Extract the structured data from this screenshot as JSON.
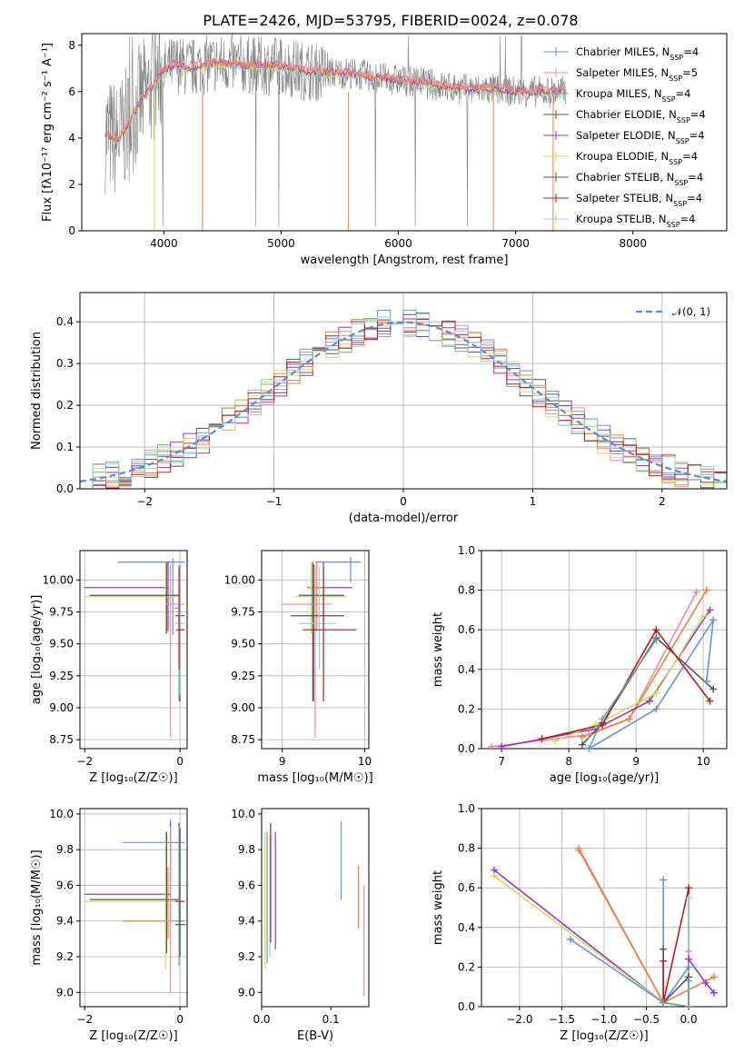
{
  "figure_title": "PLATE=2426, MJD=53795, FIBERID=0024, z=0.078",
  "colors": {
    "blue": "#6a8fdb",
    "pink": "#e88aa8",
    "teal": "#6aa6a0",
    "gray": "#555555",
    "purple": "#9a35c4",
    "yellow": "#c8e05a",
    "orange": "#f08030",
    "red": "#c01818",
    "cyan": "#88d4d8",
    "data_gray": "#808080",
    "normal_curve": "#5b8bd8"
  },
  "chart_data": [
    {
      "id": "spectrum",
      "type": "line",
      "xlabel": "wavelength [Angstrom, rest frame]",
      "ylabel": "Flux [fλ10⁻¹⁷ erg cm⁻² s⁻¹ A⁻¹]",
      "xlim": [
        3300,
        8800
      ],
      "ylim": [
        0,
        8.5
      ],
      "xticks": [
        "4000",
        "5000",
        "6000",
        "7000",
        "8000"
      ],
      "yticks": [
        "0",
        "2",
        "4",
        "6",
        "8"
      ],
      "continuum": {
        "x": [
          3500,
          3600,
          3700,
          3800,
          3900,
          4000,
          4100,
          4200,
          4300,
          4400,
          4600,
          4800,
          5000,
          5200,
          5400,
          5600,
          5800,
          6000,
          6200,
          6400,
          6600,
          6800,
          7000,
          7200,
          7400
        ],
        "y": [
          4.2,
          3.9,
          4.6,
          5.6,
          6.2,
          6.9,
          7.2,
          7.0,
          7.1,
          7.2,
          7.2,
          7.1,
          7.1,
          6.9,
          6.8,
          6.8,
          6.6,
          6.5,
          6.4,
          6.2,
          6.1,
          6.1,
          6.0,
          6.0,
          6.0
        ]
      },
      "legend": [
        {
          "label": "Chabrier MILES, N_SSP=4",
          "color": "blue"
        },
        {
          "label": "Salpeter MILES, N_SSP=5",
          "color": "pink"
        },
        {
          "label": "Kroupa MILES, N_SSP=4",
          "color": "teal"
        },
        {
          "label": "Chabrier ELODIE, N_SSP=4",
          "color": "gray"
        },
        {
          "label": "Salpeter ELODIE, N_SSP=4",
          "color": "purple"
        },
        {
          "label": "Kroupa ELODIE, N_SSP=4",
          "color": "yellow"
        },
        {
          "label": "Chabrier STELIB, N_SSP=4",
          "color": "gray"
        },
        {
          "label": "Salpeter STELIB, N_SSP=4",
          "color": "red"
        },
        {
          "label": "Kroupa STELIB, N_SSP=4",
          "color": "cyan"
        }
      ],
      "legend_placement": "upper right"
    },
    {
      "id": "residuals",
      "type": "histogram",
      "xlabel": "(data-model)/error",
      "ylabel": "Normed distribution",
      "xlim": [
        -2.5,
        2.5
      ],
      "ylim": [
        0,
        0.47
      ],
      "xticks": [
        "−2",
        "−1",
        "0",
        "1",
        "2"
      ],
      "yticks": [
        "0.0",
        "0.1",
        "0.2",
        "0.3",
        "0.4"
      ],
      "grid": true,
      "bin_width": 0.1,
      "normal_sigma": 1,
      "legend": [
        {
          "label": "𝒩(0, 1)",
          "color": "normal_curve",
          "style": "dashed"
        }
      ],
      "legend_placement": "upper right"
    },
    {
      "id": "age_vs_Z",
      "type": "errorbar",
      "xlabel": "Z [log₁₀(Z/Z☉)]",
      "ylabel": "age  [log₁₀(age/yr)]",
      "xlim": [
        -2.1,
        0.15
      ],
      "ylim": [
        8.68,
        10.23
      ],
      "xticks": [
        "−2",
        "0"
      ],
      "yticks": [
        "8.75",
        "9.00",
        "9.25",
        "9.50",
        "9.75",
        "10.00"
      ],
      "grid": true,
      "points": [
        {
          "color": "blue",
          "x": [
            -1.3,
            0.1
          ],
          "y": [
            10.14,
            10.14
          ],
          "vx": -0.15,
          "vy": [
            9.57,
            10.17
          ]
        },
        {
          "color": "purple",
          "x": [
            -2.0,
            -0.25
          ],
          "y": [
            9.94,
            9.94
          ],
          "vx": -0.25,
          "vy": [
            9.6,
            10.14
          ]
        },
        {
          "color": "yellow",
          "x": [
            -2.0,
            0.0
          ],
          "y": [
            9.87,
            9.87
          ],
          "vx": -0.3,
          "vy": [
            9.58,
            10.14
          ]
        },
        {
          "color": "gray",
          "x": [
            -1.9,
            0.0
          ],
          "y": [
            9.88,
            9.88
          ],
          "vx": -0.28,
          "vy": [
            9.58,
            10.14
          ]
        },
        {
          "color": "pink",
          "x": [
            -0.3,
            0.1
          ],
          "y": [
            9.81,
            9.81
          ],
          "vx": -0.2,
          "vy": [
            8.77,
            10.12
          ]
        },
        {
          "color": "teal",
          "x": [
            -0.12,
            0.0
          ],
          "y": [
            9.78,
            9.78
          ],
          "vx": -0.02,
          "vy": [
            9.05,
            10.12
          ]
        },
        {
          "color": "gray",
          "x": [
            -0.1,
            0.1
          ],
          "y": [
            9.72,
            9.72
          ],
          "vx": 0.0,
          "vy": [
            9.05,
            10.12
          ]
        },
        {
          "color": "cyan",
          "x": [
            -0.1,
            0.1
          ],
          "y": [
            9.66,
            9.66
          ],
          "vx": 0.0,
          "vy": [
            9.1,
            10.12
          ]
        },
        {
          "color": "red",
          "x": [
            -0.08,
            0.1
          ],
          "y": [
            9.61,
            9.61
          ],
          "vx": -0.02,
          "vy": [
            9.3,
            10.1
          ]
        }
      ]
    },
    {
      "id": "age_vs_mass",
      "type": "errorbar",
      "xlabel": "mass [log₁₀(M/M☉)]",
      "ylabel": "",
      "xlim": [
        8.75,
        10.05
      ],
      "ylim": [
        8.68,
        10.23
      ],
      "xticks": [
        "9",
        "10"
      ],
      "yticks": [
        "8.75",
        "9.00",
        "9.25",
        "9.50",
        "9.75",
        "10.00"
      ],
      "grid": true,
      "points": [
        {
          "color": "blue",
          "x": [
            9.4,
            9.95
          ],
          "y": [
            10.14,
            10.14
          ],
          "vx": 9.83,
          "vy": [
            9.98,
            10.18
          ]
        },
        {
          "color": "purple",
          "x": [
            9.3,
            9.85
          ],
          "y": [
            9.94,
            9.94
          ],
          "vx": 9.5,
          "vy": [
            9.6,
            10.14
          ]
        },
        {
          "color": "orange",
          "x": [
            9.3,
            9.55
          ],
          "y": [
            9.94,
            9.94
          ],
          "vx": 9.42,
          "vy": [
            9.6,
            10.14
          ]
        },
        {
          "color": "yellow",
          "x": [
            9.15,
            9.78
          ],
          "y": [
            9.87,
            9.87
          ],
          "vx": 9.35,
          "vy": [
            9.58,
            10.14
          ]
        },
        {
          "color": "gray",
          "x": [
            9.2,
            9.75
          ],
          "y": [
            9.88,
            9.88
          ],
          "vx": 9.37,
          "vy": [
            9.05,
            10.14
          ]
        },
        {
          "color": "pink",
          "x": [
            8.98,
            9.6
          ],
          "y": [
            9.81,
            9.81
          ],
          "vx": 9.4,
          "vy": [
            8.77,
            10.12
          ]
        },
        {
          "color": "gray",
          "x": [
            9.1,
            9.75
          ],
          "y": [
            9.72,
            9.72
          ],
          "vx": 9.38,
          "vy": [
            9.05,
            10.12
          ]
        },
        {
          "color": "cyan",
          "x": [
            9.2,
            9.65
          ],
          "y": [
            9.66,
            9.66
          ],
          "vx": 9.45,
          "vy": [
            9.3,
            10.1
          ]
        },
        {
          "color": "red",
          "x": [
            9.25,
            9.9
          ],
          "y": [
            9.61,
            9.61
          ],
          "vx": 9.5,
          "vy": [
            9.05,
            10.1
          ]
        }
      ]
    },
    {
      "id": "mass_weight_vs_age",
      "type": "line",
      "xlabel": "age  [log₁₀(age/yr)]",
      "ylabel": "mass weight",
      "xlim": [
        6.7,
        10.35
      ],
      "ylim": [
        0,
        1.0
      ],
      "xticks": [
        "7",
        "8",
        "9",
        "10"
      ],
      "yticks": [
        "0.0",
        "0.2",
        "0.4",
        "0.6",
        "0.8",
        "1.0"
      ],
      "grid": true,
      "series": [
        {
          "color": "blue",
          "x": [
            8.3,
            8.3,
            9.3,
            10.15,
            10.05
          ],
          "y": [
            0.0,
            0.0,
            0.2,
            0.65,
            0.34
          ]
        },
        {
          "color": "pink",
          "x": [
            6.85,
            8.3,
            8.9,
            9.9
          ],
          "y": [
            0.01,
            0.07,
            0.15,
            0.79
          ]
        },
        {
          "color": "orange",
          "x": [
            8.2,
            8.9,
            10.05
          ],
          "y": [
            0.06,
            0.15,
            0.8
          ]
        },
        {
          "color": "gray",
          "x": [
            8.2,
            8.5,
            9.3,
            10.15
          ],
          "y": [
            0.02,
            0.13,
            0.56,
            0.3
          ]
        },
        {
          "color": "purple",
          "x": [
            7.0,
            8.4,
            9.2,
            10.1
          ],
          "y": [
            0.01,
            0.1,
            0.24,
            0.7
          ]
        },
        {
          "color": "yellow",
          "x": [
            7.8,
            8.4,
            9.3,
            10.0
          ],
          "y": [
            0.04,
            0.12,
            0.28,
            0.67
          ]
        },
        {
          "color": "red",
          "x": [
            7.6,
            8.5,
            9.3,
            10.1
          ],
          "y": [
            0.05,
            0.12,
            0.6,
            0.24
          ]
        },
        {
          "color": "teal",
          "x": [
            8.3,
            8.5,
            9.3
          ],
          "y": [
            0.0,
            0.15,
            0.55
          ]
        }
      ]
    },
    {
      "id": "mass_vs_Z",
      "type": "errorbar",
      "xlabel": "Z [log₁₀(Z/Z☉)]",
      "ylabel": "mass [log₁₀(M/M☉)]",
      "xlim": [
        -2.1,
        0.15
      ],
      "ylim": [
        8.92,
        10.03
      ],
      "xticks": [
        "−2",
        "0"
      ],
      "yticks": [
        "9.0",
        "9.2",
        "9.4",
        "9.6",
        "9.8",
        "10.0"
      ],
      "grid": true,
      "points": [
        {
          "color": "blue",
          "x": [
            -1.2,
            0.1
          ],
          "y": [
            9.84,
            9.84
          ],
          "vx": -0.2,
          "vy": [
            9.72,
            9.97
          ]
        },
        {
          "color": "purple",
          "x": [
            -2.0,
            -0.2
          ],
          "y": [
            9.55,
            9.55
          ],
          "vx": -0.2,
          "vy": [
            9.4,
            9.95
          ]
        },
        {
          "color": "yellow",
          "x": [
            -2.0,
            0.0
          ],
          "y": [
            9.51,
            9.51
          ],
          "vx": -0.3,
          "vy": [
            9.13,
            9.9
          ]
        },
        {
          "color": "gray",
          "x": [
            -1.9,
            0.0
          ],
          "y": [
            9.52,
            9.52
          ],
          "vx": -0.28,
          "vy": [
            9.22,
            9.9
          ]
        },
        {
          "color": "orange",
          "x": [
            -1.2,
            -0.3
          ],
          "y": [
            9.4,
            9.4
          ],
          "vx": -0.25,
          "vy": [
            9.3,
            9.7
          ]
        },
        {
          "color": "pink",
          "x": [
            -0.5,
            0.1
          ],
          "y": [
            9.4,
            9.4
          ],
          "vx": -0.2,
          "vy": [
            9.0,
            9.93
          ]
        },
        {
          "color": "red",
          "x": [
            -0.1,
            0.1
          ],
          "y": [
            9.51,
            9.51
          ],
          "vx": -0.02,
          "vy": [
            9.25,
            9.95
          ]
        },
        {
          "color": "teal",
          "x": [
            -0.12,
            0.08
          ],
          "y": [
            9.4,
            9.4
          ],
          "vx": -0.02,
          "vy": [
            9.15,
            9.93
          ]
        },
        {
          "color": "gray",
          "x": [
            -0.1,
            0.12
          ],
          "y": [
            9.38,
            9.38
          ],
          "vx": 0.0,
          "vy": [
            9.2,
            9.92
          ]
        }
      ]
    },
    {
      "id": "mass_vs_EBV",
      "type": "errorbar",
      "xlabel": "E(B-V)",
      "ylabel": "",
      "xlim": [
        0,
        0.155
      ],
      "ylim": [
        8.92,
        10.03
      ],
      "xticks": [
        "0.0",
        "0.1"
      ],
      "yticks": [
        "9.0",
        "9.2",
        "9.4",
        "9.6",
        "9.8",
        "10.0"
      ],
      "grid": false,
      "points": [
        {
          "color": "yellow",
          "vx": 0.005,
          "vy": [
            9.13,
            9.9
          ]
        },
        {
          "color": "teal",
          "vx": 0.008,
          "vy": [
            9.16,
            9.9
          ]
        },
        {
          "color": "cyan",
          "vx": 0.012,
          "vy": [
            9.2,
            9.88
          ]
        },
        {
          "color": "red",
          "vx": 0.013,
          "vy": [
            9.28,
            9.95
          ]
        },
        {
          "color": "purple",
          "vx": 0.02,
          "vy": [
            9.24,
            9.9
          ]
        },
        {
          "color": "blue",
          "vx": 0.115,
          "vy": [
            9.52,
            9.96
          ]
        },
        {
          "color": "orange",
          "vx": 0.14,
          "vy": [
            9.36,
            9.71
          ]
        },
        {
          "color": "pink",
          "vx": 0.148,
          "vy": [
            8.98,
            9.6
          ]
        }
      ]
    },
    {
      "id": "mass_weight_vs_Z",
      "type": "line",
      "xlabel": "Z [log₁₀(Z/Z☉)]",
      "ylabel": "mass weight",
      "xlim": [
        -2.45,
        0.45
      ],
      "ylim": [
        0,
        1.0
      ],
      "xticks": [
        "−2.0",
        "−1.5",
        "−1.0",
        "−0.5",
        "0.0"
      ],
      "yticks": [
        "0.0",
        "0.2",
        "0.4",
        "0.6",
        "0.8",
        "1.0"
      ],
      "grid": true,
      "series": [
        {
          "color": "purple",
          "x": [
            -2.3,
            -0.3,
            0.0,
            0.0,
            0.2,
            0.3
          ],
          "y": [
            0.69,
            0.02,
            0.0,
            0.24,
            0.12,
            0.07
          ]
        },
        {
          "color": "yellow",
          "x": [
            -2.3,
            -0.3,
            0.0
          ],
          "y": [
            0.66,
            0.02,
            0.0
          ]
        },
        {
          "color": "pink",
          "x": [
            -1.3,
            -0.3,
            0.0,
            0.0
          ],
          "y": [
            0.79,
            0.02,
            0.0,
            0.28
          ]
        },
        {
          "color": "orange",
          "x": [
            -1.3,
            -0.3,
            0.3
          ],
          "y": [
            0.8,
            0.02,
            0.15
          ]
        },
        {
          "color": "blue",
          "x": [
            -1.4,
            -0.3,
            -0.3,
            -0.3,
            0.0
          ],
          "y": [
            0.34,
            0.02,
            0.64,
            0.02,
            0.2
          ]
        },
        {
          "color": "gray",
          "x": [
            -0.3,
            -0.3,
            0.0,
            0.0
          ],
          "y": [
            0.29,
            0.02,
            0.15,
            0.0
          ]
        },
        {
          "color": "red",
          "x": [
            -0.3,
            -0.3,
            0.0,
            0.0
          ],
          "y": [
            0.23,
            0.02,
            0.6,
            0.0
          ]
        },
        {
          "color": "cyan",
          "x": [
            0.0,
            0.0
          ],
          "y": [
            0.55,
            0.0
          ]
        },
        {
          "color": "teal",
          "x": [
            -0.3,
            0.0,
            0.0
          ],
          "y": [
            0.02,
            0.0,
            0.13
          ]
        }
      ]
    }
  ]
}
